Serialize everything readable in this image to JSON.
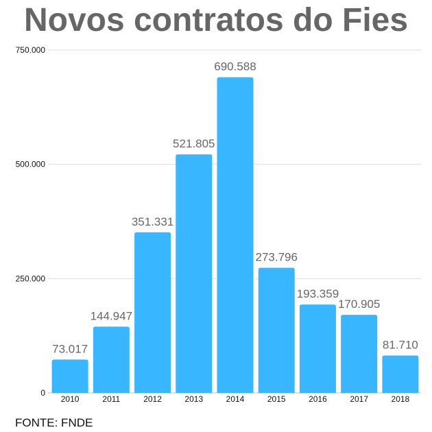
{
  "title": "Novos contratos do Fies",
  "source": "FONTE: FNDE",
  "chart_data": {
    "type": "bar",
    "title": "Novos contratos do Fies",
    "xlabel": "",
    "ylabel": "",
    "categories": [
      "2010",
      "2011",
      "2012",
      "2013",
      "2014",
      "2015",
      "2016",
      "2017",
      "2018"
    ],
    "values": [
      73017,
      144947,
      351331,
      521805,
      690588,
      273796,
      193359,
      170905,
      81710
    ],
    "data_labels": [
      "73.017",
      "144.947",
      "351.331",
      "521.805",
      "690.588",
      "273.796",
      "193.359",
      "170.905",
      "81.710"
    ],
    "yticks": [
      0,
      250000,
      500000,
      750000
    ],
    "ytick_labels": [
      "0",
      "250.000",
      "500.000",
      "750.000"
    ],
    "ylim": [
      0,
      750000
    ],
    "grid": true,
    "legend": "none",
    "bar_color": "#38b6ff",
    "gridline_color": "#dddddd",
    "label_color": "#666666"
  }
}
